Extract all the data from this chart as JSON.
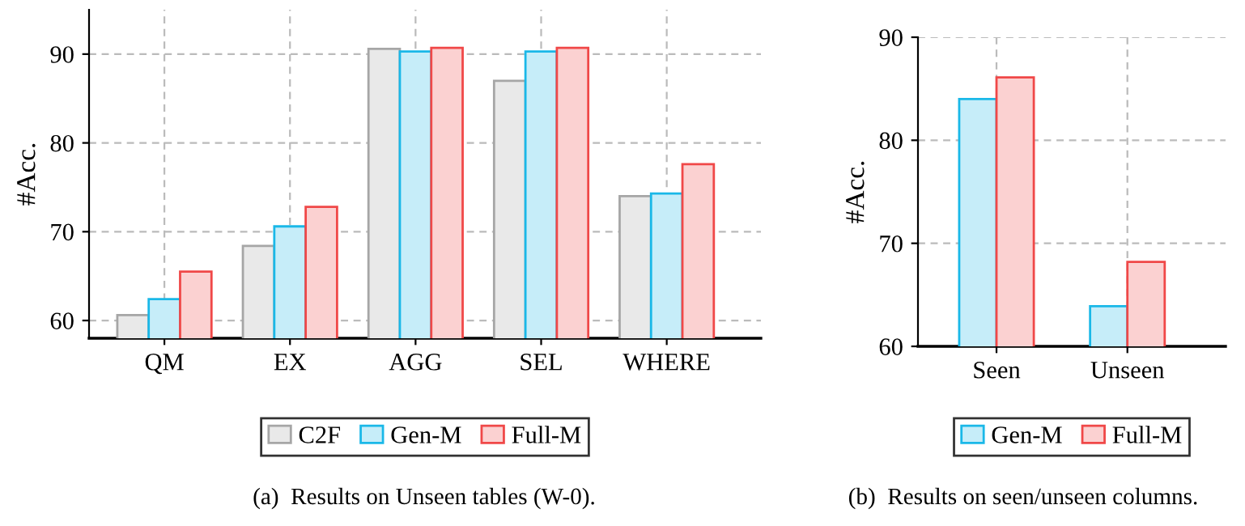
{
  "chart_data": [
    {
      "type": "bar",
      "ylabel": "#Acc.",
      "categories": [
        "QM",
        "EX",
        "AGG",
        "SEL",
        "WHERE"
      ],
      "series": [
        {
          "name": "C2F",
          "color": "#a6a6a6",
          "values": [
            60.6,
            68.4,
            90.6,
            87.0,
            74.0
          ]
        },
        {
          "name": "Gen-M",
          "color": "#1ab8e8",
          "values": [
            62.4,
            70.6,
            90.3,
            90.3,
            74.3
          ]
        },
        {
          "name": "Full-M",
          "color": "#f04848",
          "values": [
            65.5,
            72.8,
            90.7,
            90.7,
            77.6
          ]
        }
      ],
      "ylim": [
        58,
        95
      ],
      "yticks": [
        60,
        70,
        80,
        90
      ],
      "grid": true,
      "legend": "bottom",
      "annotations": [
        "(a)  Results on Unseen tables (W-0)."
      ]
    },
    {
      "type": "bar",
      "ylabel": "#Acc.",
      "categories": [
        "Seen",
        "Unseen"
      ],
      "series": [
        {
          "name": "Gen-M",
          "color": "#1ab8e8",
          "values": [
            84.0,
            63.9
          ]
        },
        {
          "name": "Full-M",
          "color": "#f04848",
          "values": [
            86.1,
            68.2
          ]
        }
      ],
      "ylim": [
        60,
        90
      ],
      "yticks": [
        60,
        70,
        80,
        90
      ],
      "grid": true,
      "legend": "bottom",
      "annotations": [
        "(b)  Results on seen/unseen columns."
      ]
    }
  ]
}
